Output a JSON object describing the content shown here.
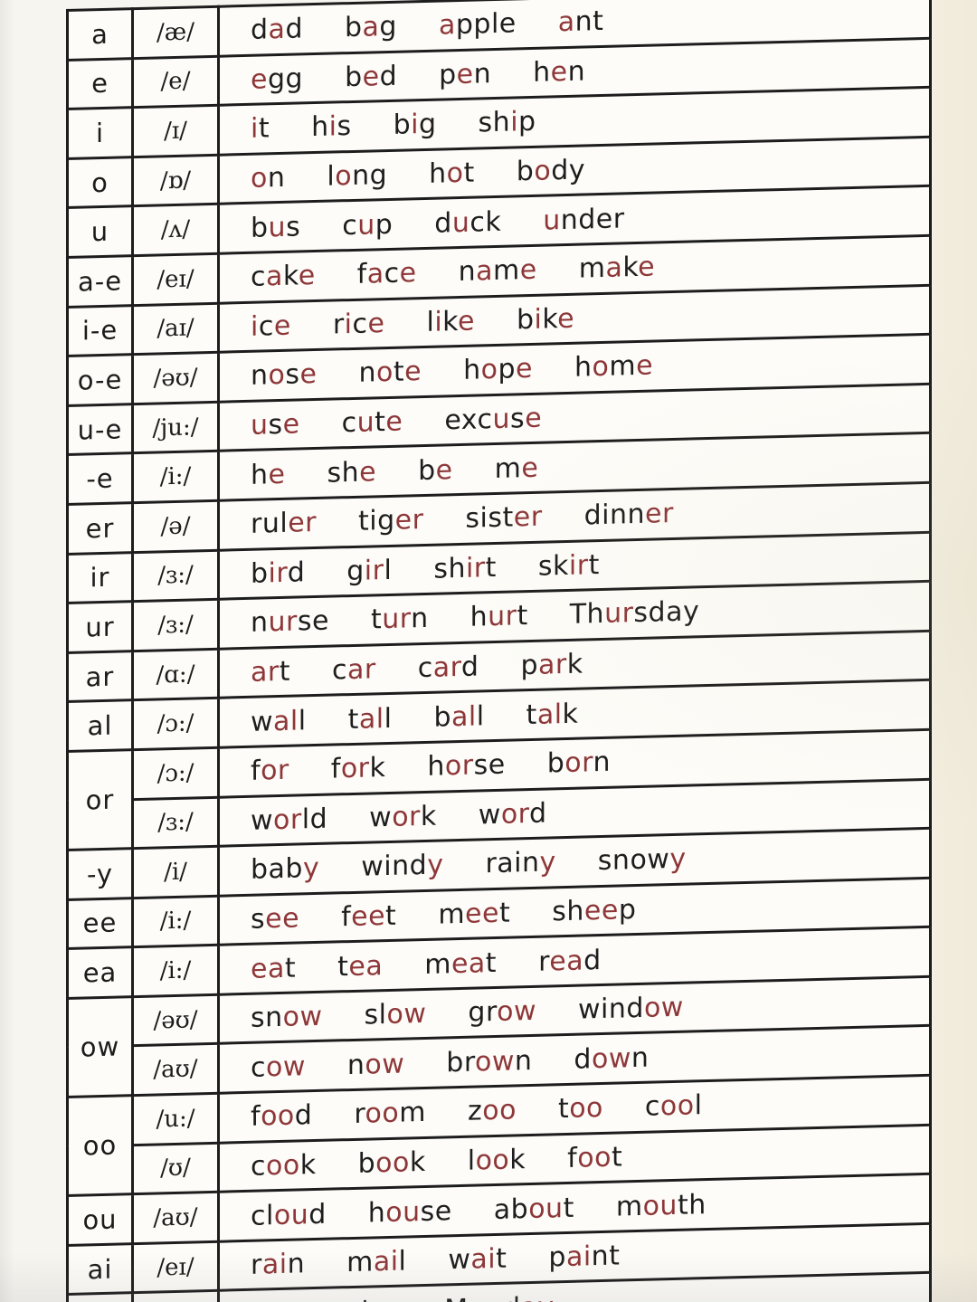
{
  "page": {
    "background": "#f7f5ef",
    "right_margin_color": "#f1ecdc",
    "table_background": "#fdfcf8",
    "line_color": "#1d1d1d",
    "text_color": "#1e1e1e",
    "highlight_red": "#8e3739"
  },
  "table": {
    "columns": [
      "letter",
      "phonetic-symbol",
      "example-words"
    ],
    "rows": [
      {
        "label": "a",
        "ipa": "/æ/",
        "words": [
          "d[a]d",
          "b[a]g",
          "[a]pple",
          "[a]nt"
        ]
      },
      {
        "label": "e",
        "ipa": "/e/",
        "words": [
          "[e]gg",
          "b[e]d",
          "p[e]n",
          "h[e]n"
        ]
      },
      {
        "label": "i",
        "ipa": "/ɪ/",
        "words": [
          "[i]t",
          "h[i]s",
          "b[i]g",
          "sh[i]p"
        ]
      },
      {
        "label": "o",
        "ipa": "/ɒ/",
        "words": [
          "[o]n",
          "l[o]ng",
          "h[o]t",
          "b[o]dy"
        ]
      },
      {
        "label": "u",
        "ipa": "/ʌ/",
        "words": [
          "b[u]s",
          "c[u]p",
          "d[u]ck",
          "[u]nder"
        ]
      },
      {
        "label": "a-e",
        "ipa": "/eɪ/",
        "words": [
          "c[a]k[e]",
          "f[a]c[e]",
          "n[a]m[e]",
          "m[a]k[e]"
        ]
      },
      {
        "label": "i-e",
        "ipa": "/aɪ/",
        "words": [
          "[i]c[e]",
          "r[i]c[e]",
          "l[i]k[e]",
          "b[i]k[e]"
        ]
      },
      {
        "label": "o-e",
        "ipa": "/əʊ/",
        "words": [
          "n[o]s[e]",
          "n[o]t[e]",
          "h[o]p[e]",
          "h[o]m[e]"
        ]
      },
      {
        "label": "u-e",
        "ipa": "/ju:/",
        "words": [
          "[u]s[e]",
          "c[u]t[e]",
          "exc[u]s[e]"
        ]
      },
      {
        "label": "-e",
        "ipa": "/i:/",
        "words": [
          "h[e]",
          "sh[e]",
          "b[e]",
          "m[e]"
        ]
      },
      {
        "label": "er",
        "ipa": "/ə/",
        "words": [
          "rul[er]",
          "tig[er]",
          "sist[er]",
          "dinn[er]"
        ]
      },
      {
        "label": "ir",
        "ipa": "/ɜ:/",
        "words": [
          "b[ir]d",
          "g[ir]l",
          "sh[ir]t",
          "sk[ir]t"
        ]
      },
      {
        "label": "ur",
        "ipa": "/ɜ:/",
        "words": [
          "n[ur]se",
          "t[ur]n",
          "h[ur]t",
          "Th[ur]sday"
        ]
      },
      {
        "label": "ar",
        "ipa": "/ɑ:/",
        "words": [
          "[ar]t",
          "c[ar]",
          "c[ar]d",
          "p[ar]k"
        ]
      },
      {
        "label": "al",
        "ipa": "/ɔ:/",
        "words": [
          "w[al]l",
          "t[al]l",
          "b[al]l",
          "t[al]k"
        ]
      },
      {
        "label": "or",
        "span": 2,
        "ipa": "/ɔ:/",
        "words": [
          "f[or]",
          "f[or]k",
          "h[or]se",
          "b[or]n"
        ]
      },
      {
        "label": null,
        "ipa": "/ɜ:/",
        "words": [
          "w[or]ld",
          "w[or]k",
          "w[or]d"
        ]
      },
      {
        "label": "-y",
        "ipa": "/i/",
        "words": [
          "bab[y]",
          "wind[y]",
          "rain[y]",
          "snow[y]"
        ]
      },
      {
        "label": "ee",
        "ipa": "/i:/",
        "words": [
          "s[ee]",
          "f[ee]t",
          "m[ee]t",
          "sh[ee]p"
        ]
      },
      {
        "label": "ea",
        "ipa": "/i:/",
        "words": [
          "[ea]t",
          "t[ea]",
          "m[ea]t",
          "r[ea]d"
        ]
      },
      {
        "label": "ow",
        "span": 2,
        "ipa": "/əʊ/",
        "words": [
          "sn[ow]",
          "sl[ow]",
          "gr[ow]",
          "wind[ow]"
        ]
      },
      {
        "label": null,
        "ipa": "/aʊ/",
        "words": [
          "c[ow]",
          "n[ow]",
          "br[ow]n",
          "d[ow]n"
        ]
      },
      {
        "label": "oo",
        "span": 2,
        "ipa": "/u:/",
        "words": [
          "f[oo]d",
          "r[oo]m",
          "z[oo]",
          "t[oo]",
          "c[oo]l"
        ]
      },
      {
        "label": null,
        "ipa": "/ʊ/",
        "words": [
          "c[oo]k",
          "b[oo]k",
          "l[oo]k",
          "f[oo]t"
        ]
      },
      {
        "label": "ou",
        "ipa": "/aʊ/",
        "words": [
          "cl[ou]d",
          "h[ou]se",
          "ab[ou]t",
          "m[ou]th"
        ]
      },
      {
        "label": "ai",
        "ipa": "/eɪ/",
        "words": [
          "r[ai]n",
          "m[ai]l",
          "w[ai]t",
          "p[ai]nt"
        ]
      },
      {
        "label": "",
        "ipa": "",
        "words": [
          "d[ay]",
          "pl[ay]",
          "Mond[ay]"
        ],
        "partial": true
      }
    ]
  }
}
